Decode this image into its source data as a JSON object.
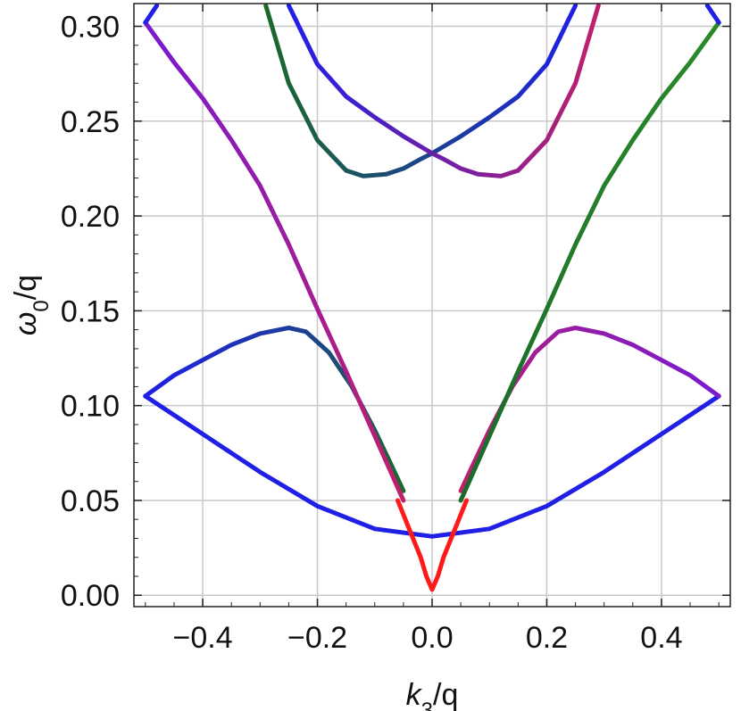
{
  "chart_data": {
    "type": "line",
    "title": "",
    "xlabel": {
      "symbol": "k",
      "subscript": "3",
      "suffix": "/q"
    },
    "ylabel": {
      "symbol": "ω",
      "subscript": "0",
      "suffix": "/q"
    },
    "xlim": [
      -0.52,
      0.52
    ],
    "ylim": [
      -0.006,
      0.312
    ],
    "xticks": [
      -0.4,
      -0.2,
      0.0,
      0.2,
      0.4
    ],
    "xtick_labels": [
      "−0.4",
      "−0.2",
      "0.0",
      "0.2",
      "0.4"
    ],
    "yticks": [
      0.0,
      0.05,
      0.1,
      0.15,
      0.2,
      0.25,
      0.3
    ],
    "ytick_labels": [
      "0.00",
      "0.05",
      "0.10",
      "0.15",
      "0.20",
      "0.25",
      "0.30"
    ],
    "grid": true,
    "legend": "none",
    "series": [
      {
        "color": "#1f1fe6",
        "gradient_to": "#1f1fe6",
        "points": [
          [
            -0.5,
            0.105
          ],
          [
            -0.4,
            0.085
          ],
          [
            -0.3,
            0.065
          ],
          [
            -0.2,
            0.047
          ],
          [
            -0.1,
            0.035
          ],
          [
            0.0,
            0.031
          ],
          [
            0.1,
            0.035
          ],
          [
            0.2,
            0.047
          ],
          [
            0.3,
            0.065
          ],
          [
            0.4,
            0.085
          ],
          [
            0.5,
            0.105
          ]
        ]
      },
      {
        "color": "#1f1fe6",
        "gradient_to": "#1a6a2a",
        "points": [
          [
            -0.5,
            0.105
          ],
          [
            -0.45,
            0.116
          ],
          [
            -0.4,
            0.124
          ],
          [
            -0.35,
            0.132
          ],
          [
            -0.3,
            0.138
          ],
          [
            -0.25,
            0.141
          ],
          [
            -0.22,
            0.139
          ],
          [
            -0.18,
            0.128
          ],
          [
            -0.14,
            0.11
          ],
          [
            -0.1,
            0.087
          ],
          [
            -0.07,
            0.068
          ],
          [
            -0.05,
            0.055
          ]
        ]
      },
      {
        "color": "#c0206a",
        "gradient_to": "#7a1ad0",
        "points": [
          [
            0.05,
            0.055
          ],
          [
            0.07,
            0.068
          ],
          [
            0.1,
            0.087
          ],
          [
            0.14,
            0.11
          ],
          [
            0.18,
            0.128
          ],
          [
            0.22,
            0.139
          ],
          [
            0.25,
            0.141
          ],
          [
            0.3,
            0.138
          ],
          [
            0.35,
            0.132
          ],
          [
            0.4,
            0.124
          ],
          [
            0.45,
            0.116
          ],
          [
            0.5,
            0.105
          ]
        ]
      },
      {
        "color": "#7a1ad0",
        "gradient_to": "#c0206a",
        "points": [
          [
            -0.5,
            0.302
          ],
          [
            -0.45,
            0.281
          ],
          [
            -0.4,
            0.262
          ],
          [
            -0.35,
            0.24
          ],
          [
            -0.3,
            0.216
          ],
          [
            -0.25,
            0.185
          ],
          [
            -0.2,
            0.151
          ],
          [
            -0.15,
            0.118
          ],
          [
            -0.1,
            0.084
          ],
          [
            -0.05,
            0.05
          ]
        ]
      },
      {
        "color": "#1a6a2a",
        "gradient_to": "#2a8a2a",
        "points": [
          [
            0.05,
            0.05
          ],
          [
            0.1,
            0.084
          ],
          [
            0.15,
            0.118
          ],
          [
            0.2,
            0.151
          ],
          [
            0.25,
            0.185
          ],
          [
            0.3,
            0.216
          ],
          [
            0.35,
            0.24
          ],
          [
            0.4,
            0.262
          ],
          [
            0.45,
            0.281
          ],
          [
            0.5,
            0.302
          ]
        ]
      },
      {
        "color": "#1a6a2a",
        "gradient_to": "#1f1fe6",
        "points": [
          [
            -0.29,
            0.311
          ],
          [
            -0.25,
            0.27
          ],
          [
            -0.2,
            0.24
          ],
          [
            -0.15,
            0.224
          ],
          [
            -0.12,
            0.221
          ],
          [
            -0.08,
            0.222
          ],
          [
            -0.05,
            0.225
          ],
          [
            -0.02,
            0.23
          ],
          [
            0.0,
            0.233
          ],
          [
            0.05,
            0.242
          ],
          [
            0.1,
            0.252
          ],
          [
            0.15,
            0.263
          ],
          [
            0.2,
            0.28
          ],
          [
            0.25,
            0.311
          ]
        ]
      },
      {
        "color": "#1f1fe6",
        "gradient_to": "#c0206a",
        "points": [
          [
            -0.25,
            0.311
          ],
          [
            -0.2,
            0.28
          ],
          [
            -0.15,
            0.263
          ],
          [
            -0.1,
            0.252
          ],
          [
            -0.05,
            0.242
          ],
          [
            0.0,
            0.233
          ],
          [
            0.02,
            0.23
          ],
          [
            0.05,
            0.225
          ],
          [
            0.08,
            0.222
          ],
          [
            0.12,
            0.221
          ],
          [
            0.15,
            0.224
          ],
          [
            0.2,
            0.24
          ],
          [
            0.25,
            0.27
          ],
          [
            0.29,
            0.311
          ]
        ]
      },
      {
        "color": "#ff1a1a",
        "gradient_to": "#ff1a1a",
        "points": [
          [
            -0.06,
            0.05
          ],
          [
            -0.04,
            0.035
          ],
          [
            -0.02,
            0.02
          ],
          [
            -0.01,
            0.01
          ],
          [
            0.0,
            0.003
          ],
          [
            0.01,
            0.01
          ],
          [
            0.02,
            0.02
          ],
          [
            0.04,
            0.035
          ],
          [
            0.06,
            0.05
          ]
        ]
      },
      {
        "color": "#1f1fe6",
        "gradient_to": "#1f1fe6",
        "points": [
          [
            -0.5,
            0.302
          ],
          [
            -0.48,
            0.311
          ]
        ]
      },
      {
        "color": "#1f1fe6",
        "gradient_to": "#1f1fe6",
        "points": [
          [
            0.48,
            0.311
          ],
          [
            0.5,
            0.302
          ]
        ]
      }
    ]
  }
}
